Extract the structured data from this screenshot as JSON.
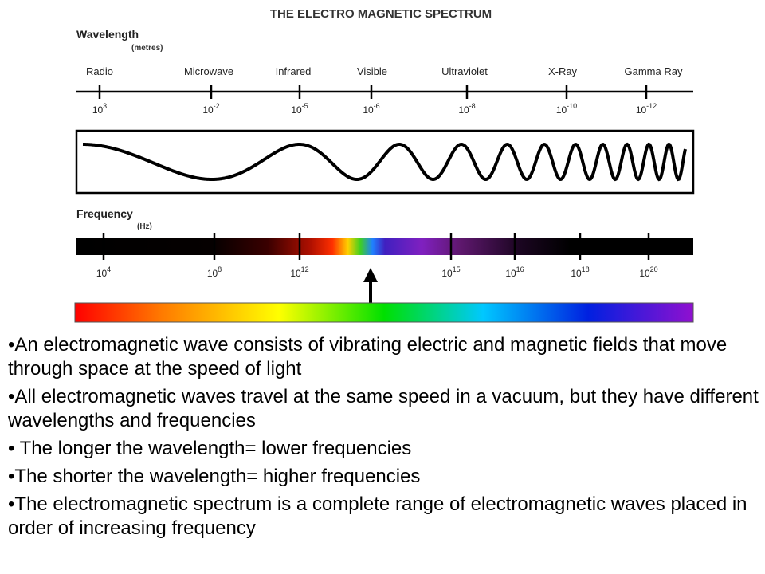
{
  "diagram": {
    "title": "THE ELECTRO MAGNETIC SPECTRUM",
    "wavelength_label": "Wavelength",
    "wavelength_unit": "(metres)",
    "frequency_label": "Frequency",
    "frequency_unit": "(Hz)",
    "bands": [
      "Radio",
      "Microwave",
      "Infrared",
      "Visible",
      "Ultraviolet",
      "X-Ray",
      "Gamma Ray"
    ],
    "wavelength_ticks": [
      {
        "base": "10",
        "exp": "3"
      },
      {
        "base": "10",
        "exp": "-2"
      },
      {
        "base": "10",
        "exp": "-5"
      },
      {
        "base": "10",
        "exp": "-6"
      },
      {
        "base": "10",
        "exp": "-8"
      },
      {
        "base": "10",
        "exp": "-10"
      },
      {
        "base": "10",
        "exp": "-12"
      }
    ],
    "frequency_ticks": [
      {
        "base": "10",
        "exp": "4"
      },
      {
        "base": "10",
        "exp": "8"
      },
      {
        "base": "10",
        "exp": "12"
      },
      {
        "base": "10",
        "exp": "15"
      },
      {
        "base": "10",
        "exp": "16"
      },
      {
        "base": "10",
        "exp": "18"
      },
      {
        "base": "10",
        "exp": "20"
      }
    ]
  },
  "notes": [
    "An electromagnetic wave consists of vibrating electric and magnetic fields that move through space at the speed of light",
    "All electromagnetic waves travel at the same speed in a vacuum, but they have different wavelengths and frequencies",
    " The longer the wavelength= lower frequencies",
    "The shorter the wavelength= higher frequencies",
    "The electromagnetic spectrum is a complete range of electromagnetic waves placed in order of increasing frequency"
  ]
}
